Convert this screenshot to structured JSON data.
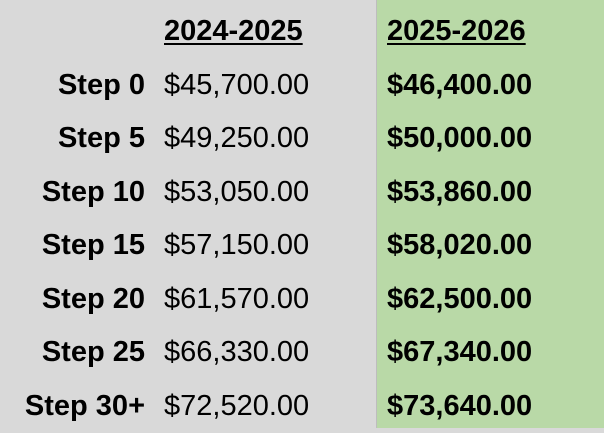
{
  "headers": {
    "old": "2024-2025",
    "new": "2025-2026"
  },
  "rows": [
    {
      "step": "Step 0",
      "old": "$45,700.00",
      "new": "$46,400.00"
    },
    {
      "step": "Step 5",
      "old": "$49,250.00",
      "new": "$50,000.00"
    },
    {
      "step": "Step 10",
      "old": "$53,050.00",
      "new": "$53,860.00"
    },
    {
      "step": "Step 15",
      "old": "$57,150.00",
      "new": "$58,020.00"
    },
    {
      "step": "Step 20",
      "old": "$61,570.00",
      "new": "$62,500.00"
    },
    {
      "step": "Step 25",
      "old": "$66,330.00",
      "new": "$67,340.00"
    },
    {
      "step": "Step 30+",
      "old": "$72,520.00",
      "new": "$73,640.00"
    }
  ],
  "colors": {
    "background": "#d9d9d9",
    "highlight_column": "#b9d9a7",
    "text": "#000000"
  }
}
